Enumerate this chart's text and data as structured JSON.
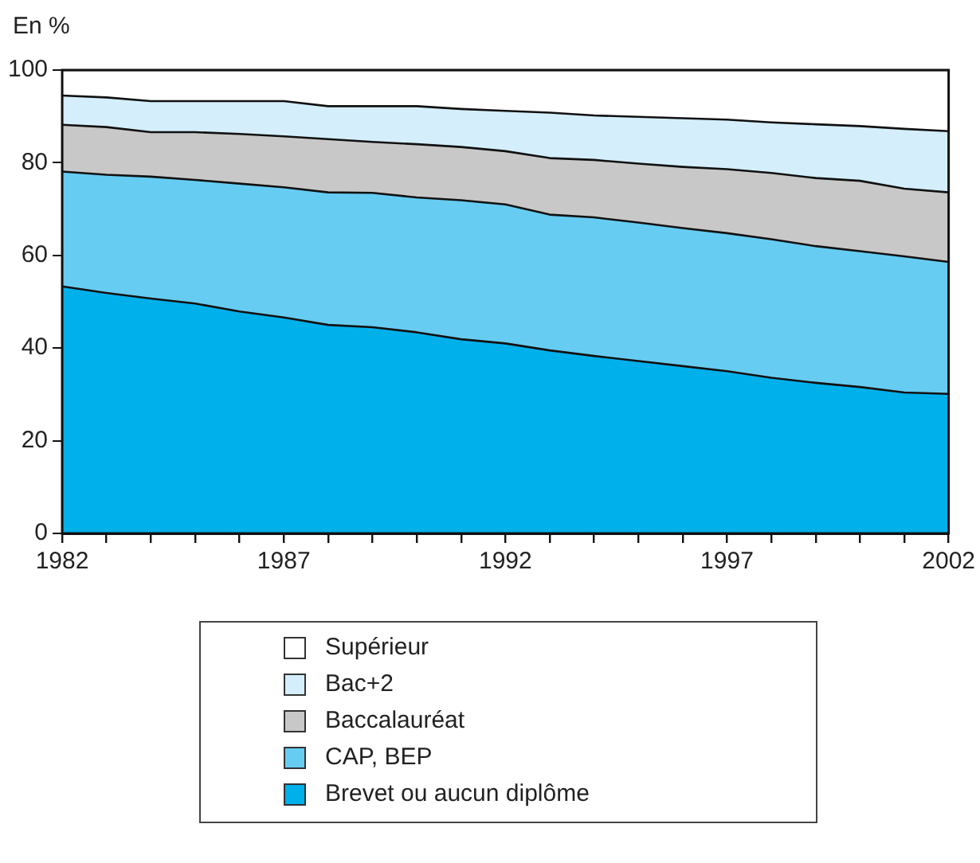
{
  "chart_data": {
    "type": "area",
    "stacked": true,
    "ylabel": "En %",
    "legend": "bottom",
    "x": [
      1982,
      1983,
      1984,
      1985,
      1986,
      1987,
      1988,
      1989,
      1990,
      1991,
      1992,
      1993,
      1994,
      1995,
      1996,
      1997,
      1998,
      1999,
      2000,
      2001,
      2002
    ],
    "xlim": [
      1982,
      2002
    ],
    "xticks": [
      1982,
      {
        "value": 1983,
        "label": null
      },
      {
        "value": 1984,
        "label": null
      },
      {
        "value": 1985,
        "label": null
      },
      {
        "value": 1986,
        "label": null
      },
      1987,
      {
        "value": 1988,
        "label": null
      },
      {
        "value": 1989,
        "label": null
      },
      {
        "value": 1990,
        "label": null
      },
      {
        "value": 1991,
        "label": null
      },
      1992,
      {
        "value": 1993,
        "label": null
      },
      {
        "value": 1994,
        "label": null
      },
      {
        "value": 1995,
        "label": null
      },
      {
        "value": 1996,
        "label": null
      },
      1997,
      {
        "value": 1998,
        "label": null
      },
      {
        "value": 1999,
        "label": null
      },
      {
        "value": 2000,
        "label": null
      },
      {
        "value": 2001,
        "label": null
      },
      2002
    ],
    "ylim": [
      0,
      100
    ],
    "yticks": [
      0,
      20,
      40,
      60,
      80,
      100
    ],
    "series": [
      {
        "name": "Brevet ou aucun diplôme",
        "color": "#00b0eb",
        "values": [
          53.3,
          51.9,
          50.7,
          49.6,
          47.9,
          46.6,
          45.0,
          44.5,
          43.4,
          41.9,
          41.0,
          39.5,
          38.3,
          37.2,
          36.1,
          35.0,
          33.6,
          32.5,
          31.6,
          30.4,
          30.1
        ]
      },
      {
        "name": "CAP, BEP",
        "color": "#66ccf2",
        "values": [
          24.8,
          25.5,
          26.3,
          26.7,
          27.6,
          28.1,
          28.6,
          29.0,
          29.1,
          30.0,
          30.0,
          29.3,
          29.9,
          29.9,
          29.8,
          29.8,
          29.9,
          29.5,
          29.3,
          29.4,
          28.5
        ]
      },
      {
        "name": "Baccalauréat",
        "color": "#c8c8c8",
        "values": [
          10.1,
          10.3,
          9.6,
          10.3,
          10.7,
          11.0,
          11.5,
          11.0,
          11.5,
          11.5,
          11.5,
          12.2,
          12.4,
          12.7,
          13.2,
          13.8,
          14.3,
          14.7,
          15.2,
          14.6,
          15.0
        ]
      },
      {
        "name": "Bac+2",
        "color": "#d4eefb",
        "values": [
          6.3,
          6.4,
          6.7,
          6.7,
          7.1,
          7.6,
          7.1,
          7.7,
          8.2,
          8.2,
          8.7,
          9.8,
          9.6,
          10.1,
          10.5,
          10.7,
          10.9,
          11.6,
          11.8,
          12.9,
          13.2
        ]
      },
      {
        "name": "Supérieur",
        "color": "#ffffff",
        "values": [
          5.5,
          5.9,
          6.7,
          6.7,
          6.7,
          6.7,
          7.8,
          7.8,
          7.8,
          8.4,
          8.8,
          9.2,
          9.8,
          10.1,
          10.4,
          10.7,
          11.3,
          11.7,
          12.1,
          12.7,
          13.2
        ]
      }
    ]
  }
}
